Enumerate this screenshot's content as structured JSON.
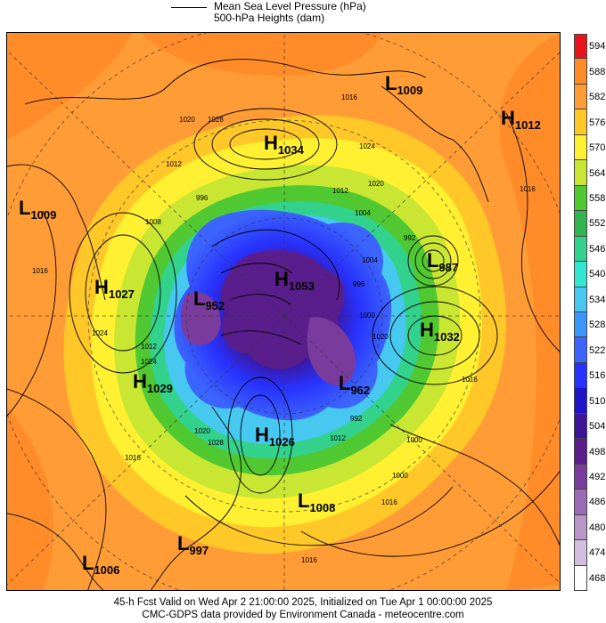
{
  "legend": {
    "line1": "Mean Sea Level Pressure (hPa)",
    "line2": "500-hPa Heights (dam)"
  },
  "colorbar": {
    "labels": [
      "594",
      "588",
      "582",
      "576",
      "570",
      "564",
      "558",
      "552",
      "546",
      "540",
      "534",
      "528",
      "522",
      "516",
      "510",
      "504",
      "498",
      "492",
      "486",
      "480",
      "474",
      "468"
    ],
    "colors": [
      "#e8141e",
      "#ff8c28",
      "#ff9c36",
      "#ffc828",
      "#fff032",
      "#c8e632",
      "#50c832",
      "#32b450",
      "#32d28c",
      "#32e6d2",
      "#46c8f0",
      "#3c96ff",
      "#3c64ff",
      "#2832ff",
      "#1e14c8",
      "#3c1496",
      "#5a1e8c",
      "#7a3c9c",
      "#9a6ab4",
      "#b896c8",
      "#d2bede",
      "#ffffff"
    ]
  },
  "pressure_systems": [
    {
      "type": "L",
      "value": "1009",
      "name": "L1009-east-pacific"
    },
    {
      "type": "H",
      "value": "1012",
      "name": "H1012-northeast"
    },
    {
      "type": "H",
      "value": "1034",
      "name": "H1034-north"
    },
    {
      "type": "L",
      "value": "1009",
      "name": "L1009-west"
    },
    {
      "type": "H",
      "value": "1027",
      "name": "H1027-west"
    },
    {
      "type": "L",
      "value": "987",
      "name": "L987-east"
    },
    {
      "type": "H",
      "value": "1053",
      "name": "H1053-pole"
    },
    {
      "type": "L",
      "value": "952",
      "name": "L952"
    },
    {
      "type": "H",
      "value": "1032",
      "name": "H1032-east"
    },
    {
      "type": "H",
      "value": "1029",
      "name": "H1029-west"
    },
    {
      "type": "L",
      "value": "962",
      "name": "L962"
    },
    {
      "type": "H",
      "value": "1026",
      "name": "H1026-south"
    },
    {
      "type": "L",
      "value": "1008",
      "name": "L1008-south"
    },
    {
      "type": "L",
      "value": "997",
      "name": "L997-southwest"
    },
    {
      "type": "L",
      "value": "1006",
      "name": "L1006-southwest"
    }
  ],
  "contour_labels": [
    "1016",
    "1020",
    "1028",
    "1024",
    "1020",
    "1012",
    "1016",
    "996",
    "1012",
    "1004",
    "1008",
    "1024",
    "1016",
    "992",
    "1000",
    "1020",
    "1016",
    "1012",
    "1024",
    "1020",
    "1028",
    "1000",
    "1012",
    "1016",
    "1016",
    "996",
    "1000",
    "992",
    "1004",
    "1016"
  ],
  "footer": {
    "line1": "45-h Fcst Valid on Wed Apr  2 21:00:00 2025, Initialized on Tue Apr  1 00:00:00 2025",
    "line2": "CMC-GDPS data provided by Environment Canada - meteocentre.com"
  }
}
